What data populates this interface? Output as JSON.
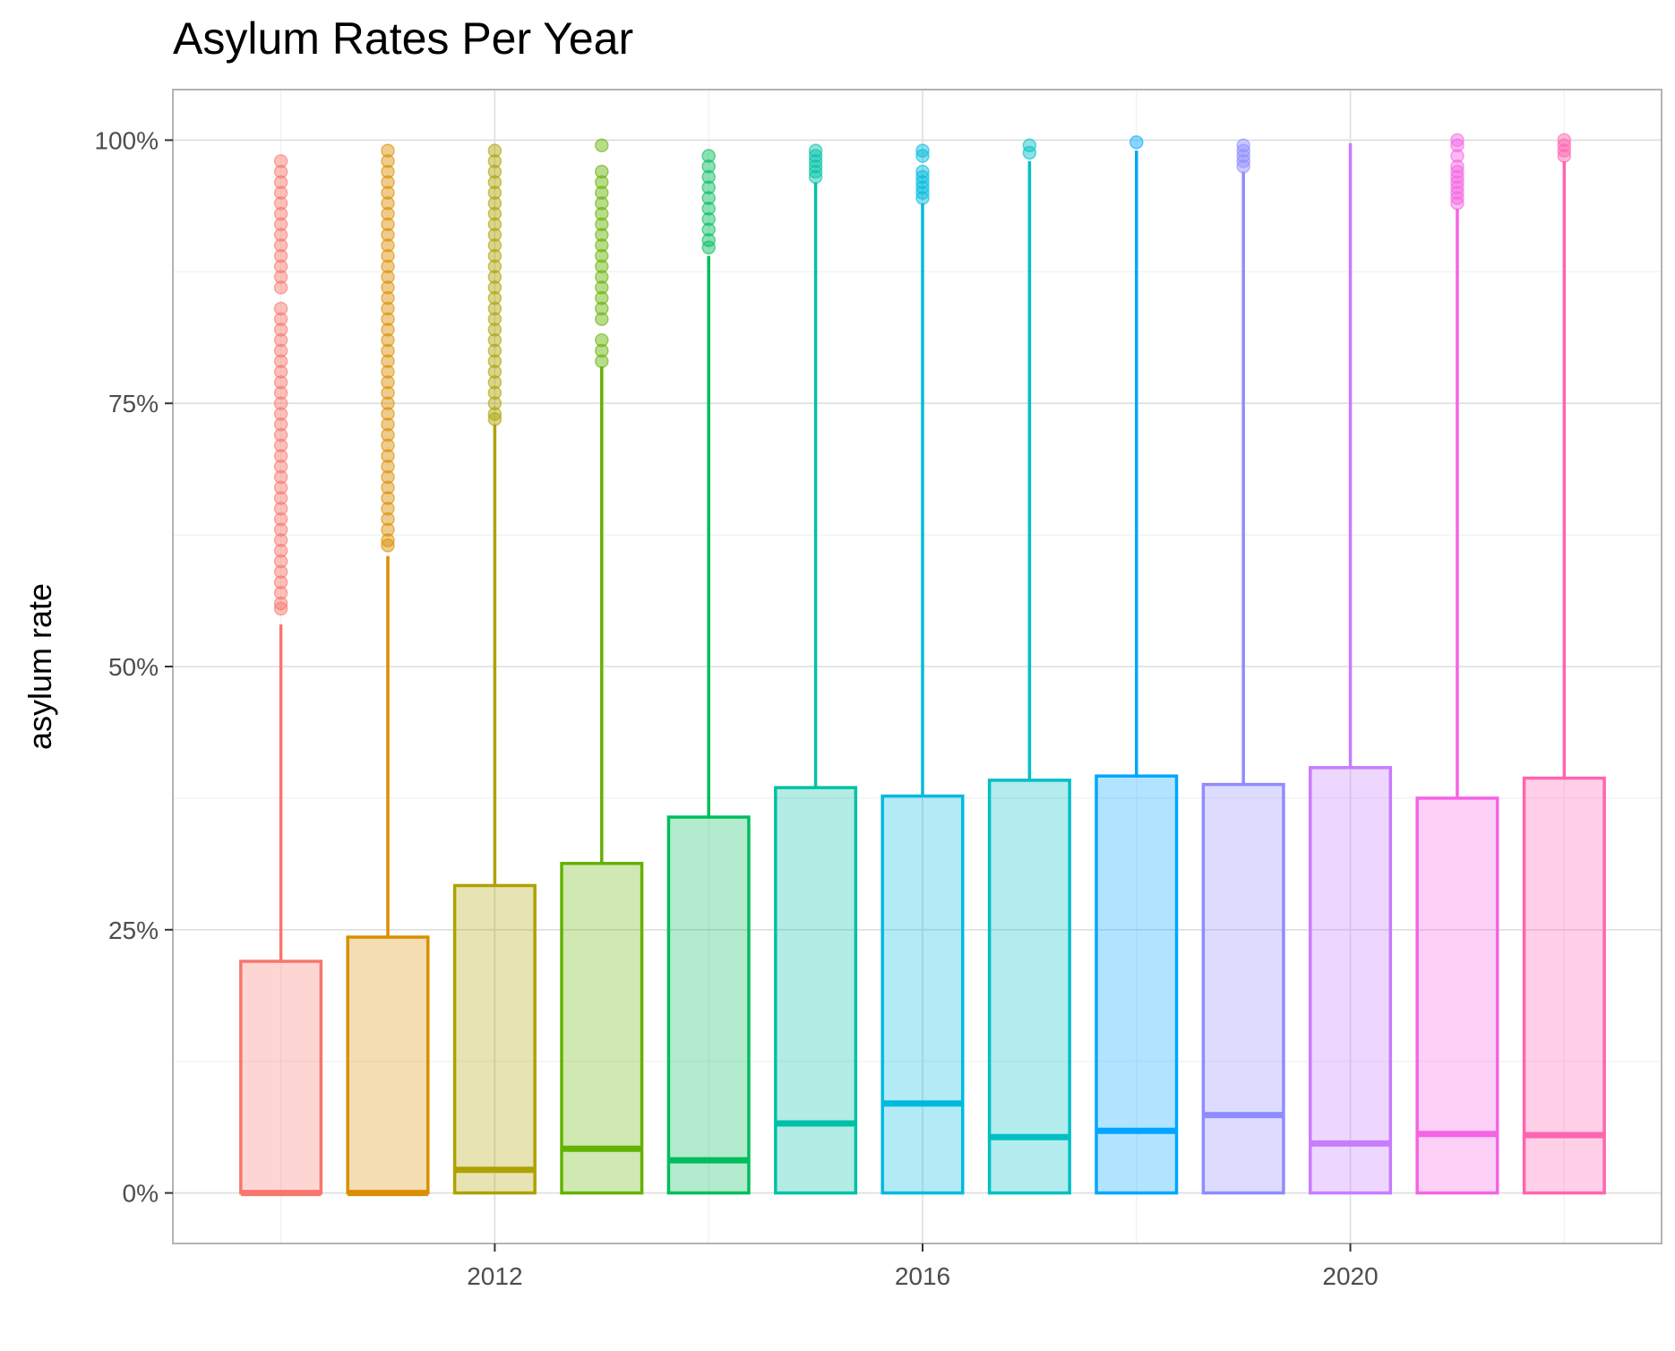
{
  "chart_data": {
    "type": "boxplot",
    "title": "Asylum Rates Per Year",
    "xlabel": "",
    "ylabel": "asylum rate",
    "x_tick_labels": [
      "2012",
      "2016",
      "2020"
    ],
    "x_tick_values": [
      2012,
      2016,
      2020
    ],
    "y_tick_labels": [
      "0%",
      "25%",
      "50%",
      "75%",
      "100%"
    ],
    "y_tick_values": [
      0,
      25,
      50,
      75,
      100
    ],
    "xlim": [
      2008.99,
      2022.91
    ],
    "ylim": [
      -4.8,
      104.8
    ],
    "grid": true,
    "legend": "none",
    "fill_opacity": 0.3,
    "boxes": [
      {
        "year": 2010,
        "color": "#F8766D",
        "min": 0,
        "q1": 0,
        "median": 0,
        "q3": 22,
        "whisker_high": 54,
        "outliers": [
          55.5,
          56,
          57,
          58,
          59,
          60,
          61,
          62,
          63,
          64,
          65,
          66,
          67,
          68,
          69,
          70,
          71,
          72,
          73,
          74,
          75,
          76,
          77,
          78,
          79,
          80,
          81,
          82,
          83,
          84,
          86,
          87,
          88,
          89,
          90,
          91,
          92,
          93,
          94,
          95,
          96,
          97,
          98
        ]
      },
      {
        "year": 2011,
        "color": "#DB8E00",
        "min": 0,
        "q1": 0,
        "median": 0,
        "q3": 24.3,
        "whisker_high": 60.5,
        "outliers": [
          61.5,
          62,
          63,
          64,
          65,
          66,
          67,
          68,
          69,
          70,
          71,
          72,
          73,
          74,
          75,
          76,
          77,
          78,
          79,
          80,
          81,
          82,
          83,
          84,
          85,
          86,
          87,
          88,
          89,
          90,
          91,
          92,
          93,
          94,
          95,
          96,
          97,
          98,
          99
        ]
      },
      {
        "year": 2012,
        "color": "#AEA200",
        "min": 0,
        "q1": 0,
        "median": 2.2,
        "q3": 29.2,
        "whisker_high": 73,
        "outliers": [
          73.5,
          74,
          75,
          76,
          77,
          78,
          79,
          80,
          81,
          82,
          83,
          84,
          85,
          86,
          87,
          88,
          89,
          90,
          91,
          92,
          93,
          94,
          95,
          96,
          97,
          98,
          99
        ]
      },
      {
        "year": 2013,
        "color": "#64B200",
        "min": 0,
        "q1": 0,
        "median": 4.2,
        "q3": 31.3,
        "whisker_high": 78.5,
        "outliers": [
          79,
          80,
          81,
          83,
          84,
          85,
          86,
          87,
          88,
          89,
          90,
          91,
          92,
          93,
          94,
          95,
          96,
          97,
          99.5
        ]
      },
      {
        "year": 2014,
        "color": "#00BD5C",
        "min": 0,
        "q1": 0,
        "median": 3.1,
        "q3": 35.7,
        "whisker_high": 89,
        "outliers": [
          89.8,
          90.5,
          91.5,
          92.5,
          93.5,
          94.5,
          95.5,
          96.5,
          97.5,
          98.5
        ]
      },
      {
        "year": 2015,
        "color": "#00C1A7",
        "min": 0,
        "q1": 0,
        "median": 6.6,
        "q3": 38.5,
        "whisker_high": 96,
        "outliers": [
          96.5,
          97,
          97.5,
          98,
          98.5,
          99
        ]
      },
      {
        "year": 2016,
        "color": "#00BADE",
        "min": 0,
        "q1": 0,
        "median": 8.5,
        "q3": 37.7,
        "whisker_high": 94,
        "outliers": [
          94.5,
          95,
          95.5,
          96,
          96.5,
          97,
          98.5,
          99
        ]
      },
      {
        "year": 2017,
        "color": "#00BFC4",
        "min": 0,
        "q1": 0,
        "median": 5.3,
        "q3": 39.2,
        "whisker_high": 98,
        "outliers": [
          98.8,
          99.5
        ]
      },
      {
        "year": 2018,
        "color": "#00A6FF",
        "min": 0,
        "q1": 0,
        "median": 5.9,
        "q3": 39.6,
        "whisker_high": 99,
        "outliers": [
          99.8
        ]
      },
      {
        "year": 2019,
        "color": "#8F8CFF",
        "min": 0,
        "q1": 0,
        "median": 7.4,
        "q3": 38.8,
        "whisker_high": 97,
        "outliers": [
          97.5,
          98,
          98.5,
          99,
          99.5
        ]
      },
      {
        "year": 2020,
        "color": "#C77CFF",
        "min": 0,
        "q1": 0,
        "median": 4.7,
        "q3": 40.4,
        "whisker_high": 99.7,
        "outliers": []
      },
      {
        "year": 2021,
        "color": "#F564E3",
        "min": 0,
        "q1": 0,
        "median": 5.6,
        "q3": 37.5,
        "whisker_high": 93.5,
        "outliers": [
          94,
          94.5,
          95,
          95.5,
          96,
          96.5,
          97,
          97.5,
          98.5,
          99.5,
          100
        ]
      },
      {
        "year": 2022,
        "color": "#FF64B0",
        "min": 0,
        "q1": 0,
        "median": 5.5,
        "q3": 39.4,
        "whisker_high": 98,
        "outliers": [
          98.5,
          99,
          99.5,
          100
        ]
      }
    ]
  }
}
